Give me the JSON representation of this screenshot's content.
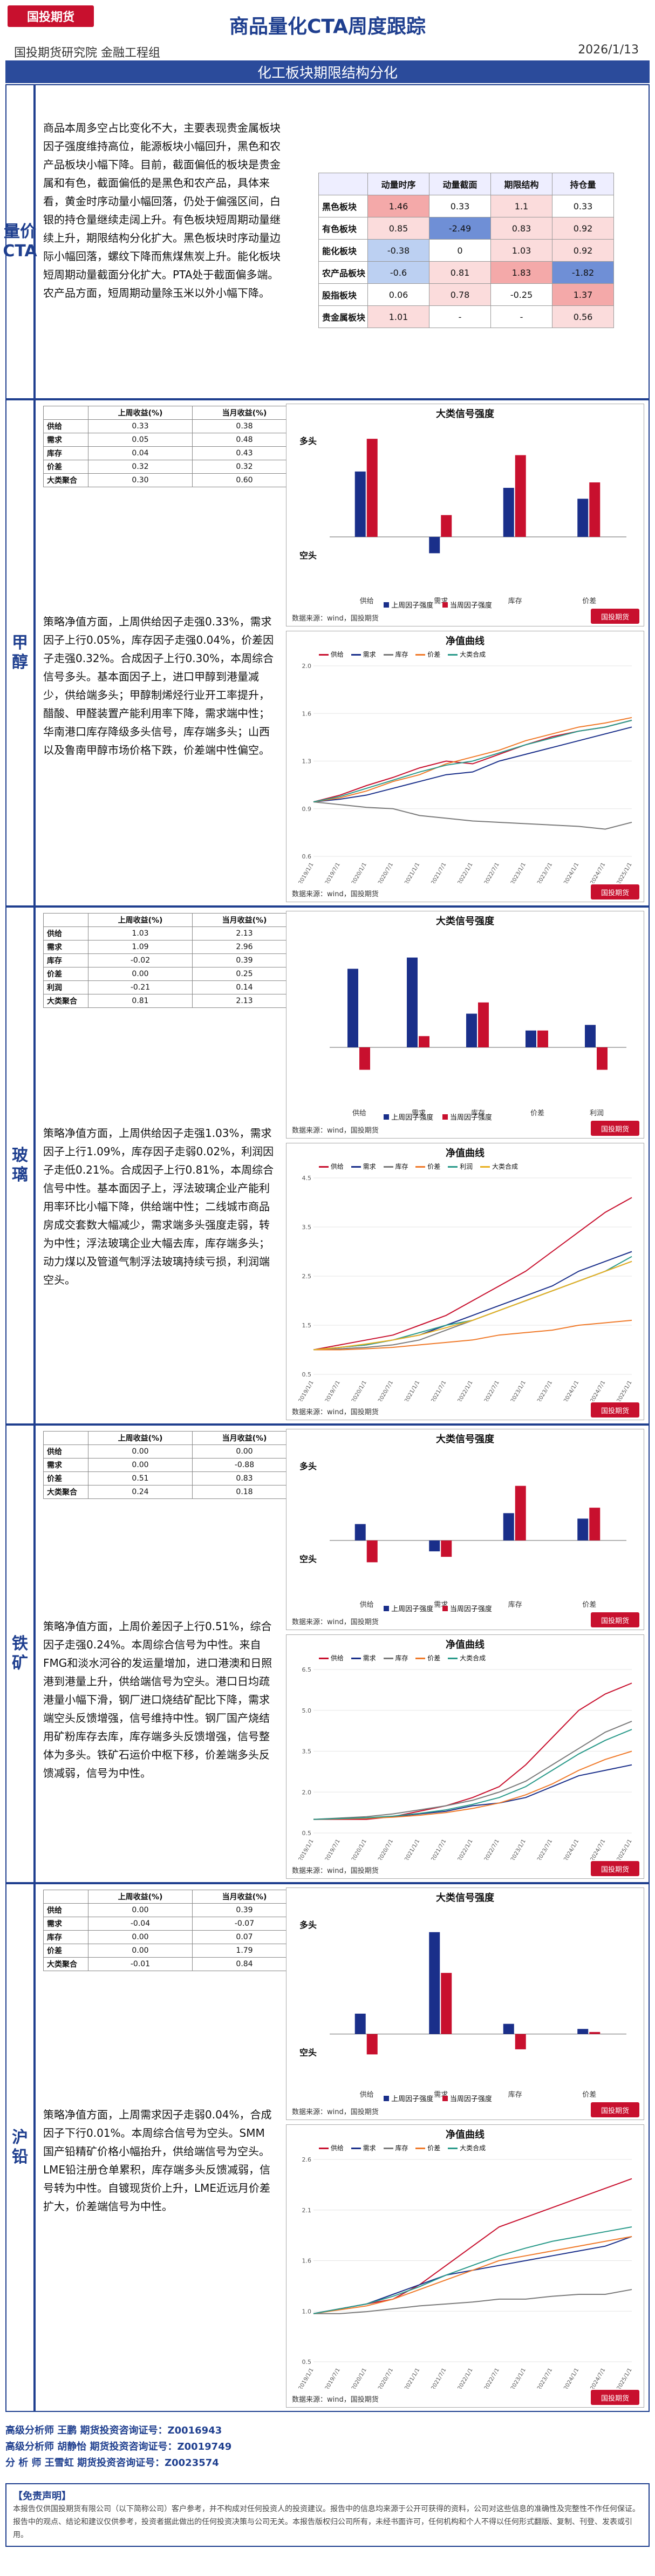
{
  "header": {
    "logo": "国投期货",
    "title": "商品量化CTA周度跟踪",
    "subtitle": "国投期货研究院 金融工程组",
    "date": "2026/1/13",
    "section": "化工板块期限结构分化"
  },
  "cta": {
    "label": "量价CTA",
    "text": "商品本周多空占比变化不大，主要表现贵金属板块因子强度维持高位，能源板块小幅回升，黑色和农产品板块小幅下降。目前，截面偏低的板块是贵金属和有色，截面偏低的是黑色和农产品，具体来看，黄金时序动量小幅回落，仍处于偏强区间，白银的持仓量继续走阔上升。有色板块短周期动量继续上升，期限结构分化扩大。黑色板块时序动量边际小幅回落，螺纹下降而焦煤焦炭上升。能化板块短周期动量截面分化扩大。PTA处于截面偏多端。农产品方面，短周期动量除玉米以外小幅下降。",
    "table": {
      "headers": [
        "",
        "动量时序",
        "动量截面",
        "期限结构",
        "持仓量"
      ],
      "rows": [
        {
          "name": "黑色板块",
          "values": [
            "1.46",
            "0.33",
            "1.1",
            "0.33"
          ]
        },
        {
          "name": "有色板块",
          "values": [
            "0.85",
            "-2.49",
            "0.83",
            "0.92"
          ]
        },
        {
          "name": "能化板块",
          "values": [
            "-0.38",
            "0",
            "1.03",
            "0.92"
          ]
        },
        {
          "name": "农产品板块",
          "values": [
            "-0.6",
            "0.81",
            "1.83",
            "-1.82"
          ]
        },
        {
          "name": "股指板块",
          "values": [
            "0.06",
            "0.78",
            "-0.25",
            "1.37"
          ]
        },
        {
          "name": "贵金属板块",
          "values": [
            "1.01",
            "-",
            "-",
            "0.56"
          ]
        }
      ]
    }
  },
  "sections": [
    {
      "id": "methanol",
      "label": "甲醇",
      "table": {
        "headers": [
          "",
          "上周收益(%)",
          "当月收益(%)"
        ],
        "rows": [
          [
            "供给",
            "0.33",
            "0.38"
          ],
          [
            "需求",
            "0.05",
            "0.48"
          ],
          [
            "库存",
            "0.04",
            "0.43"
          ],
          [
            "价差",
            "0.32",
            "0.32"
          ],
          [
            "大类聚合",
            "0.30",
            "0.60"
          ]
        ]
      },
      "text": "策略净值方面，上周供给因子走强0.33%，需求因子上行0.05%，库存因子走强0.04%，价差因子走强0.32%。合成因子上行0.30%，本周综合信号多头。基本面因子上，进口甲醇到港量减少，供给端多头；甲醇制烯烃行业开工率提升，醋酸、甲醛装置产能利用率下降，需求端中性；华南港口库存降级多头信号，库存端多头；山西以及鲁南甲醇市场价格下跌，价差端中性偏空。",
      "bar": {
        "title": "大类信号强度",
        "categories": [
          "供给",
          "需求",
          "库存",
          "价差"
        ],
        "series": [
          {
            "name": "上周因子强度",
            "values": [
              0.6,
              -0.15,
              0.45,
              0.35
            ]
          },
          {
            "name": "当周因子强度",
            "values": [
              0.9,
              0.2,
              0.75,
              0.5
            ]
          }
        ],
        "ylim": [
          -0.5,
          1.0
        ],
        "legend": [
          "上周因子强度",
          "当周因子强度"
        ],
        "ylabel_top": "多头",
        "ylabel_bottom": "空头",
        "source": "数据来源：wind，国投期货"
      },
      "line": {
        "title": "净值曲线",
        "series": [
          {
            "name": "供给",
            "values": [
              1.0,
              1.05,
              1.12,
              1.18,
              1.25,
              1.3,
              1.28,
              1.35,
              1.42,
              1.48,
              1.52,
              1.55,
              1.6
            ]
          },
          {
            "name": "需求",
            "values": [
              1.0,
              1.02,
              1.05,
              1.1,
              1.15,
              1.2,
              1.22,
              1.3,
              1.35,
              1.4,
              1.45,
              1.5,
              1.55
            ]
          },
          {
            "name": "库存",
            "values": [
              1.0,
              0.98,
              0.96,
              0.95,
              0.9,
              0.88,
              0.86,
              0.85,
              0.84,
              0.83,
              0.82,
              0.8,
              0.85
            ]
          },
          {
            "name": "价差",
            "values": [
              1.0,
              1.03,
              1.08,
              1.15,
              1.2,
              1.28,
              1.33,
              1.38,
              1.45,
              1.5,
              1.55,
              1.58,
              1.62
            ]
          },
          {
            "name": "大类合成",
            "values": [
              1.0,
              1.04,
              1.1,
              1.16,
              1.22,
              1.27,
              1.3,
              1.36,
              1.42,
              1.47,
              1.52,
              1.55,
              1.6
            ]
          }
        ],
        "xlabels": [
          "2019/1/1",
          "2019/7/1",
          "2020/1/1",
          "2020/7/1",
          "2021/1/1",
          "2021/7/1",
          "2022/1/1",
          "2022/7/1",
          "2023/1/1",
          "2023/7/1",
          "2024/1/1",
          "2024/7/1",
          "2025/1/1"
        ],
        "ylim": [
          0.6,
          2.0
        ],
        "source": "数据来源：wind，国投期货"
      }
    },
    {
      "id": "glass",
      "label": "玻璃",
      "table": {
        "headers": [
          "",
          "上周收益(%)",
          "当月收益(%)"
        ],
        "rows": [
          [
            "供给",
            "1.03",
            "2.13"
          ],
          [
            "需求",
            "1.09",
            "2.96"
          ],
          [
            "库存",
            "-0.02",
            "0.39"
          ],
          [
            "价差",
            "0.00",
            "0.25"
          ],
          [
            "利润",
            "-0.21",
            "0.14"
          ],
          [
            "大类聚合",
            "0.81",
            "2.13"
          ]
        ]
      },
      "text": "策略净值方面，上周供给因子走强1.03%，需求因子上行1.09%，库存因子走弱0.02%，利润因子走低0.21%。合成因子上行0.81%，本周综合信号中性。基本面因子上，浮法玻璃企业产能利用率环比小幅下降，供给端中性；二线城市商品房成交套数大幅减少，需求端多头强度走弱，转为中性；浮法玻璃企业大幅去库，库存端多头；动力煤以及管道气制浮法玻璃持续亏损，利润端空头。",
      "bar": {
        "title": "大类信号强度",
        "categories": [
          "供给",
          "需求",
          "库存",
          "价差",
          "利润"
        ],
        "series": [
          {
            "name": "上周因子强度",
            "values": [
              0.7,
              0.8,
              0.3,
              0.15,
              0.2
            ]
          },
          {
            "name": "当周因子强度",
            "values": [
              -0.2,
              0.1,
              0.4,
              0.15,
              -0.2
            ]
          }
        ],
        "ylim": [
          -0.5,
          1.0
        ],
        "legend": [
          "上周因子强度",
          "当周因子强度"
        ],
        "source": "数据来源：wind，国投期货"
      },
      "line": {
        "title": "净值曲线",
        "series": [
          {
            "name": "供给",
            "values": [
              1.0,
              1.1,
              1.2,
              1.3,
              1.5,
              1.7,
              2.0,
              2.3,
              2.6,
              3.0,
              3.4,
              3.8,
              4.1
            ]
          },
          {
            "name": "需求",
            "values": [
              1.0,
              1.05,
              1.1,
              1.2,
              1.3,
              1.5,
              1.7,
              1.9,
              2.1,
              2.3,
              2.6,
              2.8,
              3.0
            ]
          },
          {
            "name": "库存",
            "values": [
              1.0,
              1.02,
              1.05,
              1.1,
              1.2,
              1.4,
              1.6,
              1.8,
              2.0,
              2.2,
              2.4,
              2.6,
              2.8
            ]
          },
          {
            "name": "价差",
            "values": [
              1.0,
              1.0,
              1.02,
              1.05,
              1.1,
              1.15,
              1.2,
              1.3,
              1.35,
              1.4,
              1.5,
              1.55,
              1.6
            ]
          },
          {
            "name": "利润",
            "values": [
              1.0,
              1.05,
              1.1,
              1.2,
              1.35,
              1.5,
              1.6,
              1.8,
              2.0,
              2.2,
              2.4,
              2.6,
              2.9
            ]
          },
          {
            "name": "大类合成",
            "values": [
              1.0,
              1.05,
              1.12,
              1.2,
              1.3,
              1.45,
              1.6,
              1.8,
              2.0,
              2.2,
              2.4,
              2.6,
              2.8
            ]
          }
        ],
        "xlabels": [
          "2019/1/1",
          "2019/7/1",
          "2020/1/1",
          "2020/7/1",
          "2021/1/1",
          "2021/7/1",
          "2022/1/1",
          "2022/7/1",
          "2023/1/1",
          "2023/7/1",
          "2024/1/1",
          "2024/7/1",
          "2025/1/1"
        ],
        "ylim": [
          0.5,
          4.5
        ],
        "source": "数据来源：wind，国投期货"
      }
    },
    {
      "id": "iron",
      "label": "铁矿",
      "table": {
        "headers": [
          "",
          "上周收益(%)",
          "当月收益(%)"
        ],
        "rows": [
          [
            "供给",
            "0.00",
            "0.00"
          ],
          [
            "需求",
            "0.00",
            "-0.88"
          ],
          [
            "价差",
            "0.51",
            "0.83"
          ],
          [
            "大类聚合",
            "0.24",
            "0.18"
          ]
        ]
      },
      "text": "策略净值方面，上周价差因子上行0.51%，综合因子走强0.24%。本周综合信号为中性。来自FMG和淡水河谷的发运量增加，进口港澳和日照港到港量上升，供给端信号为空头。港口日均疏港量小幅下滑，钢厂进口烧结矿配比下降，需求端空头反馈增强，信号维持中性。钢厂国产烧结用矿粉库存去库，库存端多头反馈增强，信号整体为多头。铁矿石运价中枢下移，价差端多头反馈减弱，信号为中性。",
      "bar": {
        "title": "大类信号强度",
        "categories": [
          "供给",
          "需求",
          "库存",
          "价差"
        ],
        "series": [
          {
            "name": "上周因子强度",
            "values": [
              0.15,
              -0.1,
              0.25,
              0.2
            ]
          },
          {
            "name": "当周因子强度",
            "values": [
              -0.2,
              -0.15,
              0.5,
              0.3
            ]
          }
        ],
        "ylim": [
          -0.5,
          0.8
        ],
        "legend": [
          "上周因子强度",
          "当周因子强度"
        ],
        "ylabel_top": "多头",
        "ylabel_bottom": "空头",
        "source": "数据来源：wind，国投期货"
      },
      "line": {
        "title": "净值曲线",
        "series": [
          {
            "name": "供给",
            "values": [
              1.0,
              1.0,
              1.0,
              1.1,
              1.3,
              1.5,
              1.8,
              2.2,
              3.0,
              4.0,
              5.0,
              5.6,
              6.0
            ]
          },
          {
            "name": "需求",
            "values": [
              1.0,
              1.02,
              1.05,
              1.1,
              1.2,
              1.3,
              1.5,
              1.6,
              1.8,
              2.2,
              2.6,
              2.8,
              3.0
            ]
          },
          {
            "name": "库存",
            "values": [
              1.0,
              1.05,
              1.1,
              1.2,
              1.35,
              1.5,
              1.7,
              2.0,
              2.4,
              3.0,
              3.6,
              4.2,
              4.6
            ]
          },
          {
            "name": "价差",
            "values": [
              1.0,
              1.02,
              1.04,
              1.08,
              1.15,
              1.25,
              1.4,
              1.6,
              1.9,
              2.3,
              2.8,
              3.2,
              3.5
            ]
          },
          {
            "name": "大类合成",
            "values": [
              1.0,
              1.03,
              1.06,
              1.12,
              1.22,
              1.35,
              1.55,
              1.8,
              2.2,
              2.8,
              3.4,
              3.9,
              4.3
            ]
          }
        ],
        "xlabels": [
          "2019/1/1",
          "2019/7/1",
          "2020/1/1",
          "2020/7/1",
          "2021/1/1",
          "2021/7/1",
          "2022/1/1",
          "2022/7/1",
          "2023/1/1",
          "2023/7/1",
          "2024/1/1",
          "2024/7/1",
          "2025/1/1"
        ],
        "ylim": [
          0.5,
          6.5
        ],
        "source": "数据来源：wind，国投期货"
      }
    },
    {
      "id": "lead",
      "label": "沪铅",
      "table": {
        "headers": [
          "",
          "上周收益(%)",
          "当月收益(%)"
        ],
        "rows": [
          [
            "供给",
            "0.00",
            "0.39"
          ],
          [
            "需求",
            "-0.04",
            "-0.07"
          ],
          [
            "库存",
            "0.00",
            "0.07"
          ],
          [
            "价差",
            "0.00",
            "1.79"
          ],
          [
            "大类聚合",
            "-0.01",
            "0.84"
          ]
        ]
      },
      "text": "策略净值方面，上周需求因子走弱0.04%，合成因子下行0.01%。本周综合信号为空头。SMM国产铅精矿价格小幅抬升，供给端信号为空头。LME铅注册仓单累积，库存端多头反馈减弱，信号转为中性。自镀现货价上升，LME近远月价差扩大，价差端信号为中性。",
      "bar": {
        "title": "大类信号强度",
        "categories": [
          "供给",
          "需求",
          "库存",
          "价差"
        ],
        "series": [
          {
            "name": "上周因子强度",
            "values": [
              0.2,
              1.0,
              0.1,
              0.05
            ]
          },
          {
            "name": "当周因子强度",
            "values": [
              -0.2,
              0.6,
              -0.15,
              0.02
            ]
          }
        ],
        "ylim": [
          -0.5,
          1.2
        ],
        "legend": [
          "上周因子强度",
          "当周因子强度"
        ],
        "ylabel_top": "多头",
        "ylabel_bottom": "空头",
        "source": "数据来源：wind，国投期货"
      },
      "line": {
        "title": "净值曲线",
        "series": [
          {
            "name": "供给",
            "values": [
              1.0,
              1.05,
              1.1,
              1.15,
              1.3,
              1.5,
              1.7,
              1.9,
              2.0,
              2.1,
              2.2,
              2.3,
              2.4
            ]
          },
          {
            "name": "需求",
            "values": [
              1.0,
              1.05,
              1.1,
              1.2,
              1.3,
              1.4,
              1.45,
              1.5,
              1.55,
              1.6,
              1.65,
              1.7,
              1.8
            ]
          },
          {
            "name": "库存",
            "values": [
              1.0,
              1.0,
              1.02,
              1.05,
              1.08,
              1.1,
              1.12,
              1.15,
              1.15,
              1.18,
              1.2,
              1.2,
              1.25
            ]
          },
          {
            "name": "价差",
            "values": [
              1.0,
              1.04,
              1.08,
              1.15,
              1.25,
              1.35,
              1.45,
              1.55,
              1.6,
              1.65,
              1.7,
              1.75,
              1.8
            ]
          },
          {
            "name": "大类合成",
            "values": [
              1.0,
              1.05,
              1.1,
              1.18,
              1.28,
              1.4,
              1.5,
              1.6,
              1.68,
              1.75,
              1.8,
              1.85,
              1.9
            ]
          }
        ],
        "xlabels": [
          "2019/1/1",
          "2019/7/1",
          "2020/1/1",
          "2020/7/1",
          "2021/1/1",
          "2021/7/1",
          "2022/1/1",
          "2022/7/1",
          "2023/1/1",
          "2023/7/1",
          "2024/1/1",
          "2024/7/1",
          "2025/1/1"
        ],
        "ylim": [
          0.5,
          2.6
        ],
        "source": "数据来源：wind，国投期货"
      }
    }
  ],
  "footer": {
    "analysts": [
      "高级分析师  王鹏   期货投资咨询证号：Z0016943",
      "高级分析师  胡静怡  期货投资咨询证号：Z0019749",
      "分  析  师  王雪虹  期货投资咨询证号：Z0023574"
    ],
    "disclaimer_title": "【免责声明】",
    "disclaimer": "本报告仅供国投期货有限公司（以下简称公司）客户参考，并不构成对任何投资人的投资建议。报告中的信息均来源于公开可获得的资料，公司对这些信息的准确性及完整性不作任何保证。报告中的观点、结论和建议仅供参考，投资者据此做出的任何投资决策与公司无关。本报告版权归公司所有，未经书面许可，任何机构和个人不得以任何形式翻版、复制、刊登、发表或引用。"
  },
  "colors": {
    "primary": "#1f3f8f",
    "red": "#c8102e",
    "blue": "#1a2f8a"
  }
}
